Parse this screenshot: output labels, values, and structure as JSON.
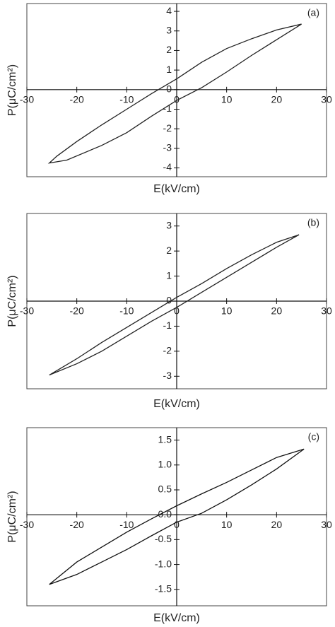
{
  "chart_data": [
    {
      "type": "line",
      "label": "(a)",
      "x_label": "E(kV/cm)",
      "y_label": "P(μC/cm²)",
      "xlim": [
        -30,
        30
      ],
      "xticks": [
        -30,
        -20,
        -10,
        0,
        10,
        20,
        30
      ],
      "ylim": [
        -4.45,
        4.4
      ],
      "yticks": [
        -4,
        -3,
        -2,
        -1,
        0,
        1,
        2,
        3,
        4
      ],
      "series": [
        {
          "color": "#222222",
          "x": [
            25,
            20,
            15,
            10,
            5,
            0,
            -5,
            -10,
            -15,
            -20,
            -24,
            -25.5,
            -22,
            -15,
            -10,
            -5,
            0,
            5,
            10,
            15,
            20,
            25
          ],
          "values": [
            3.35,
            3.05,
            2.6,
            2.1,
            1.4,
            0.55,
            -0.2,
            -1.0,
            -1.8,
            -2.65,
            -3.4,
            -3.75,
            -3.6,
            -2.85,
            -2.2,
            -1.35,
            -0.55,
            0.1,
            0.9,
            1.75,
            2.55,
            3.35
          ]
        }
      ]
    },
    {
      "type": "line",
      "label": "(b)",
      "x_label": "E(kV/cm)",
      "y_label": "P(μC/cm²)",
      "xlim": [
        -30,
        30
      ],
      "xticks": [
        -30,
        -20,
        -10,
        0,
        10,
        20,
        30
      ],
      "ylim": [
        -3.5,
        3.5
      ],
      "yticks": [
        -3,
        -2,
        -1,
        0,
        1,
        2,
        3
      ],
      "series": [
        {
          "color": "#222222",
          "x": [
            24.5,
            20,
            15,
            10,
            5,
            0,
            -5,
            -10,
            -15,
            -20,
            -25.5,
            -20,
            -15,
            -10,
            -5,
            0,
            5,
            10,
            15,
            20,
            24.5
          ],
          "values": [
            2.65,
            2.35,
            1.85,
            1.3,
            0.7,
            0.15,
            -0.45,
            -1.05,
            -1.65,
            -2.3,
            -2.95,
            -2.5,
            -2.0,
            -1.4,
            -0.8,
            -0.25,
            0.35,
            0.95,
            1.55,
            2.15,
            2.65
          ]
        }
      ]
    },
    {
      "type": "line",
      "label": "(c)",
      "x_label": "E(kV/cm)",
      "y_label": "P(μC/cm²)",
      "xlim": [
        -30,
        30
      ],
      "xticks": [
        -30,
        -20,
        -10,
        0,
        10,
        20,
        30
      ],
      "ylim": [
        -1.83,
        1.75
      ],
      "yticks": [
        -1.5,
        {
          "value": -1,
          "label": "-1.0"
        },
        -0.5,
        {
          "value": 0,
          "label": "0.0"
        },
        0.5,
        {
          "value": 1,
          "label": "1.0"
        },
        1.5
      ],
      "series": [
        {
          "color": "#111111",
          "x": [
            25.5,
            20,
            15,
            10,
            5,
            0,
            -5,
            -10,
            -15,
            -20,
            -25.5,
            -20,
            -15,
            -10,
            -5,
            0,
            5,
            10,
            15,
            20,
            25.5
          ],
          "values": [
            1.32,
            1.15,
            0.9,
            0.65,
            0.42,
            0.18,
            -0.08,
            -0.35,
            -0.65,
            -0.95,
            -1.4,
            -1.2,
            -0.95,
            -0.7,
            -0.42,
            -0.15,
            0.03,
            0.3,
            0.6,
            0.92,
            1.32
          ]
        }
      ]
    }
  ]
}
